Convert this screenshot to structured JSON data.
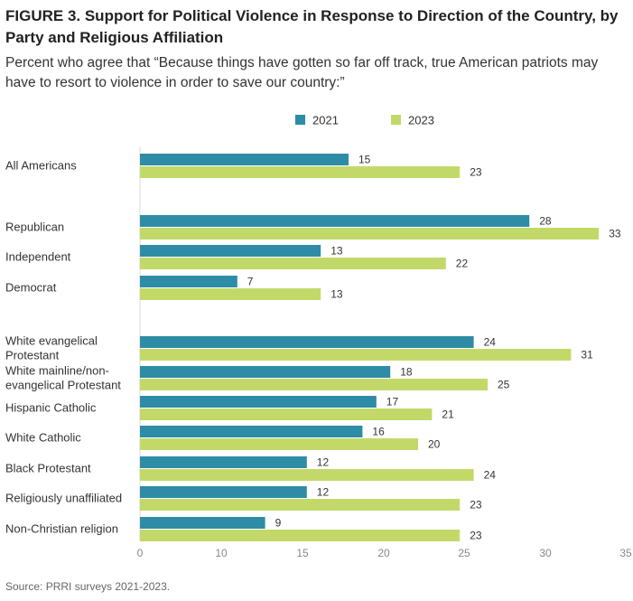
{
  "figure": {
    "title": "FIGURE 3.  Support for Political Violence in Response to Direction of the Country, by Party and Religious Affiliation",
    "subtitle": "Percent who agree that “Because things have gotten so far off track, true American patriots may have to resort to violence in order to save our country:”",
    "source": "Source: PRRI surveys 2021-2023."
  },
  "chart_data": {
    "type": "bar",
    "orientation": "horizontal",
    "categories": [
      "All Americans",
      "Republican",
      "Independent",
      "Democrat",
      "White evangelical Protestant",
      "White mainline/non-evangelical Protestant",
      "Hispanic Catholic",
      "White Catholic",
      "Black Protestant",
      "Religiously unaffiliated",
      "Non-Christian religion"
    ],
    "category_lines": [
      [
        "All Americans"
      ],
      [
        "Republican"
      ],
      [
        "Independent"
      ],
      [
        "Democrat"
      ],
      [
        "White evangelical",
        "Protestant"
      ],
      [
        "White mainline/non-",
        "evangelical Protestant"
      ],
      [
        "Hispanic Catholic"
      ],
      [
        "White Catholic"
      ],
      [
        "Black Protestant"
      ],
      [
        "Religiously unaffiliated"
      ],
      [
        "Non-Christian religion"
      ]
    ],
    "groups": [
      [
        0
      ],
      [
        1,
        2,
        3
      ],
      [
        4,
        5,
        6,
        7,
        8,
        9,
        10
      ]
    ],
    "series": [
      {
        "name": "2021",
        "color": "#2e8ca6",
        "values": [
          15,
          28,
          13,
          7,
          24,
          18,
          17,
          16,
          12,
          12,
          9
        ]
      },
      {
        "name": "2023",
        "color": "#c2d96a",
        "values": [
          23,
          33,
          22,
          13,
          31,
          25,
          21,
          20,
          24,
          23,
          23
        ]
      }
    ],
    "xlim": [
      0,
      35
    ],
    "xticks": [
      0,
      10,
      15,
      20,
      25,
      30,
      35
    ],
    "xtick_note": "Axis tick labels as printed: 0, 10, 15, 20, 25, 30, 35 (second tick printed as 10).",
    "xlabel": "",
    "ylabel": "",
    "legend": "top-center",
    "grid": false
  }
}
